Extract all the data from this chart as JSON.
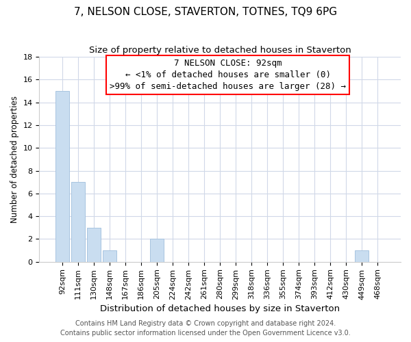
{
  "title": "7, NELSON CLOSE, STAVERTON, TOTNES, TQ9 6PG",
  "subtitle": "Size of property relative to detached houses in Staverton",
  "xlabel": "Distribution of detached houses by size in Staverton",
  "ylabel": "Number of detached properties",
  "bar_labels": [
    "92sqm",
    "111sqm",
    "130sqm",
    "148sqm",
    "167sqm",
    "186sqm",
    "205sqm",
    "224sqm",
    "242sqm",
    "261sqm",
    "280sqm",
    "299sqm",
    "318sqm",
    "336sqm",
    "355sqm",
    "374sqm",
    "393sqm",
    "412sqm",
    "430sqm",
    "449sqm",
    "468sqm"
  ],
  "bar_values": [
    15,
    7,
    3,
    1,
    0,
    0,
    2,
    0,
    0,
    0,
    0,
    0,
    0,
    0,
    0,
    0,
    0,
    0,
    0,
    1,
    0
  ],
  "bar_color": "#c9ddf0",
  "bar_edge_color": "#a8c4e0",
  "ylim": [
    0,
    18
  ],
  "yticks": [
    0,
    2,
    4,
    6,
    8,
    10,
    12,
    14,
    16,
    18
  ],
  "annotation_line1": "7 NELSON CLOSE: 92sqm",
  "annotation_line2": "← <1% of detached houses are smaller (0)",
  "annotation_line3": ">99% of semi-detached houses are larger (28) →",
  "footer_line1": "Contains HM Land Registry data © Crown copyright and database right 2024.",
  "footer_line2": "Contains public sector information licensed under the Open Government Licence v3.0.",
  "bg_color": "#ffffff",
  "grid_color": "#d0d8e8",
  "title_fontsize": 11,
  "subtitle_fontsize": 9.5,
  "xlabel_fontsize": 9.5,
  "ylabel_fontsize": 8.5,
  "tick_fontsize": 8,
  "footer_fontsize": 7,
  "annotation_fontsize": 9
}
